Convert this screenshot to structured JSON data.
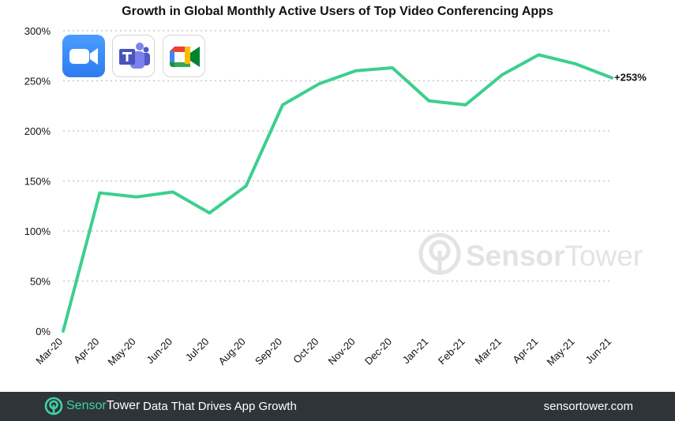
{
  "chart_data": {
    "type": "line",
    "title": "Growth in Global Monthly Active Users of Top Video Conferencing Apps",
    "xlabel": "",
    "ylabel": "",
    "categories": [
      "Mar-20",
      "Apr-20",
      "May-20",
      "Jun-20",
      "Jul-20",
      "Aug-20",
      "Sep-20",
      "Oct-20",
      "Nov-20",
      "Dec-20",
      "Jan-21",
      "Feb-21",
      "Mar-21",
      "Apr-21",
      "May-21",
      "Jun-21"
    ],
    "series": [
      {
        "values": [
          0,
          138,
          134,
          139,
          118,
          145,
          226,
          247,
          260,
          263,
          230,
          226,
          256,
          276,
          267,
          253
        ],
        "color": "#3ccf8e"
      }
    ],
    "ylim": [
      0,
      300
    ],
    "yticks": [
      0,
      50,
      100,
      150,
      200,
      250,
      300
    ],
    "ytick_labels": [
      "0%",
      "50%",
      "100%",
      "150%",
      "200%",
      "250%",
      "300%"
    ],
    "grid": "horizontal dotted",
    "end_label": "+253%"
  },
  "watermark": {
    "part1": "Sensor",
    "part2": "Tower"
  },
  "app_icons": [
    "zoom-icon",
    "teams-icon",
    "google-meet-icon"
  ],
  "footer": {
    "brand_part1": "Sensor",
    "brand_part2": "Tower",
    "tagline": "Data That Drives App Growth",
    "url": "sensortower.com"
  },
  "colors": {
    "line": "#3ccf8e",
    "grid": "#c8c8c8",
    "footer_bg": "#2f3439",
    "brand_accent": "#3ed2a6",
    "watermark": "#e3e3e3"
  }
}
